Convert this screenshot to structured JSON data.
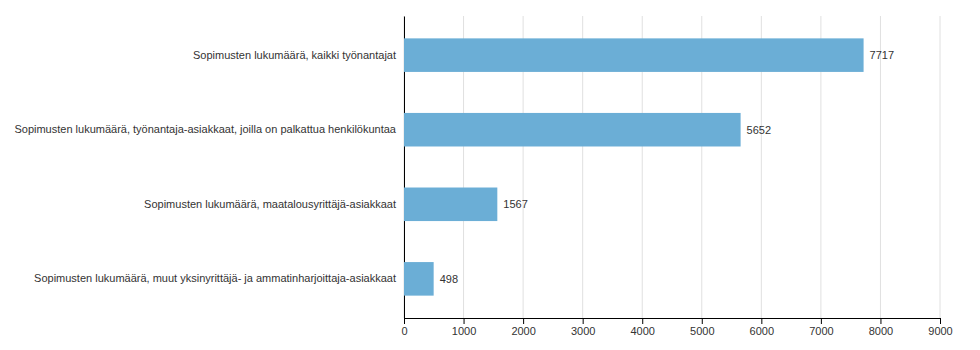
{
  "chart_data": {
    "type": "bar",
    "orientation": "horizontal",
    "categories": [
      "Sopimusten lukumäärä, muut yksinyrittäjä- ja ammatinharjoittaja-asiakkaat",
      "Sopimusten lukumäärä, maatalousyrittäjä-asiakkaat",
      "Sopimusten lukumäärä, työnantaja-asiakkaat, joilla on palkattua henkilökuntaa",
      "Sopimusten lukumäärä, kaikki työnantajat"
    ],
    "values": [
      498,
      1567,
      5652,
      7717
    ],
    "color": "#6baed6",
    "xlim": [
      0,
      9000
    ],
    "xticks": [
      0,
      1000,
      2000,
      3000,
      4000,
      5000,
      6000,
      7000,
      8000,
      9000
    ],
    "grid": true,
    "data_labels": true
  }
}
